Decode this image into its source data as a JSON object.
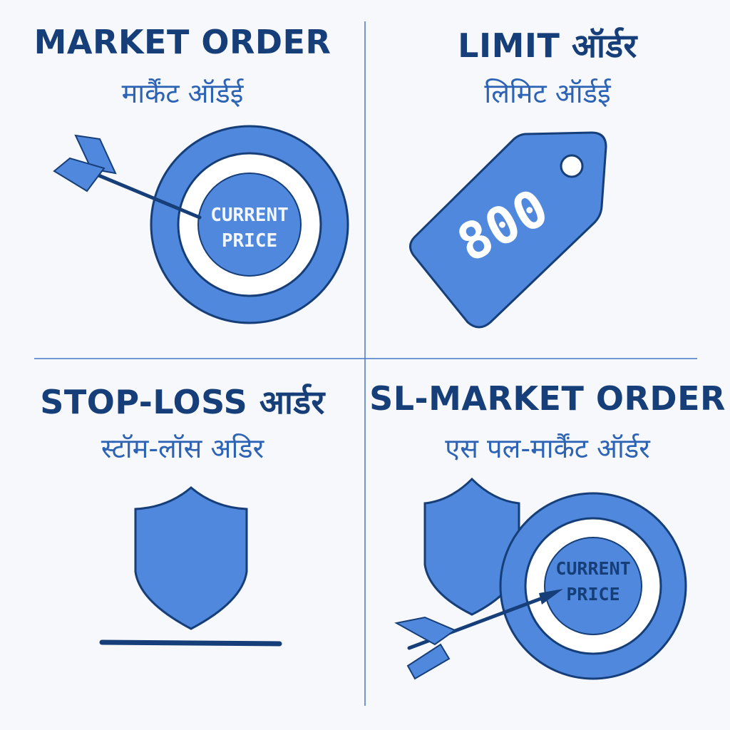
{
  "colors": {
    "navy": "#163e78",
    "blue": "#4f88dc",
    "blue_dark": "#2f66bf",
    "white": "#ffffff",
    "background": "#f7f8fb"
  },
  "panels": [
    {
      "title_en": "MARKET ORDER",
      "title_hi": "मार्कैंट ऑर्डई",
      "icons": [
        "target-icon",
        "arrow-icon"
      ],
      "target_label_line1": "CURRENT",
      "target_label_line2": "PRICE"
    },
    {
      "title_en": "LIMIT ऑर्डर",
      "title_hi": "लिमिट ऑर्डई",
      "icons": [
        "price-tag-icon"
      ],
      "tag_value": "800"
    },
    {
      "title_en": "STOP-LOSS आर्डर",
      "title_hi": "स्टॉम-लॉस अडिर",
      "icons": [
        "shield-icon"
      ]
    },
    {
      "title_en": "SL-MARKET ORDER",
      "title_hi": "एस पल-मार्कैंट ऑर्डर",
      "icons": [
        "shield-icon",
        "target-icon",
        "arrow-icon"
      ],
      "target_label_line1": "CURRENT",
      "target_label_line2": "PRICE"
    }
  ]
}
